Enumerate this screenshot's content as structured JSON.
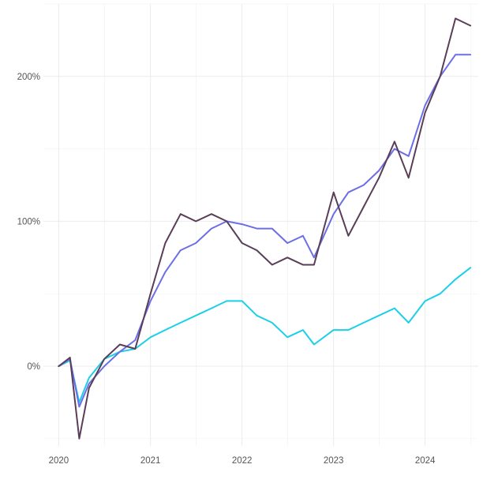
{
  "chart_data": {
    "type": "line",
    "title": "",
    "xlabel": "",
    "ylabel": "",
    "x_ticks": [
      "2020",
      "2021",
      "2022",
      "2023",
      "2024"
    ],
    "y_ticks": [
      "0%",
      "100%",
      "200%"
    ],
    "xlim": [
      "2019-11-01",
      "2024-07-31"
    ],
    "ylim": [
      -0.55,
      2.5
    ],
    "grid": true,
    "legend": "none",
    "colors": [
      "#5a3d57",
      "#6c6ee6",
      "#1ccfe8"
    ],
    "x": [
      "2020-01-01",
      "2020-02-15",
      "2020-03-23",
      "2020-05-01",
      "2020-07-01",
      "2020-09-01",
      "2020-11-01",
      "2021-01-01",
      "2021-03-01",
      "2021-05-01",
      "2021-07-01",
      "2021-09-01",
      "2021-11-01",
      "2022-01-01",
      "2022-03-01",
      "2022-05-01",
      "2022-07-01",
      "2022-09-01",
      "2022-10-15",
      "2023-01-01",
      "2023-03-01",
      "2023-05-01",
      "2023-07-01",
      "2023-09-01",
      "2023-10-27",
      "2024-01-01",
      "2024-03-01",
      "2024-05-01",
      "2024-06-30"
    ],
    "series": [
      {
        "values": [
          0.0,
          0.06,
          -0.5,
          -0.15,
          0.05,
          0.15,
          0.12,
          0.5,
          0.85,
          1.05,
          1.0,
          1.05,
          1.0,
          0.85,
          0.8,
          0.7,
          0.75,
          0.7,
          0.7,
          1.2,
          0.9,
          1.1,
          1.3,
          1.55,
          1.3,
          1.75,
          2.0,
          2.4,
          2.35
        ]
      },
      {
        "values": [
          0.0,
          0.05,
          -0.28,
          -0.12,
          0.0,
          0.1,
          0.18,
          0.45,
          0.65,
          0.8,
          0.85,
          0.95,
          1.0,
          0.98,
          0.95,
          0.95,
          0.85,
          0.9,
          0.75,
          1.05,
          1.2,
          1.25,
          1.35,
          1.5,
          1.45,
          1.8,
          2.0,
          2.15,
          2.15
        ]
      },
      {
        "values": [
          0.0,
          0.04,
          -0.25,
          -0.08,
          0.05,
          0.1,
          0.12,
          0.2,
          0.25,
          0.3,
          0.35,
          0.4,
          0.45,
          0.45,
          0.35,
          0.3,
          0.2,
          0.25,
          0.15,
          0.25,
          0.25,
          0.3,
          0.35,
          0.4,
          0.3,
          0.45,
          0.5,
          0.6,
          0.68
        ]
      }
    ]
  }
}
